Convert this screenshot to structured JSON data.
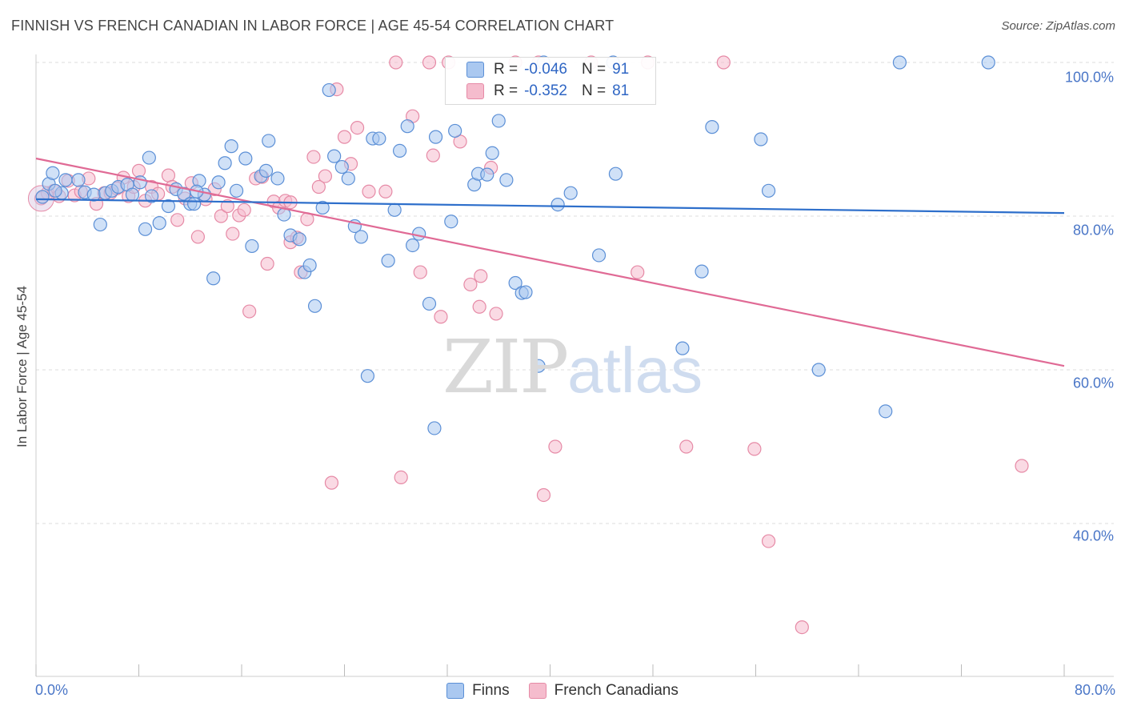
{
  "title": "FINNISH VS FRENCH CANADIAN IN LABOR FORCE | AGE 45-54 CORRELATION CHART",
  "source": "Source: ZipAtlas.com",
  "watermark": {
    "zip": "ZIP",
    "atlas": "atlas"
  },
  "legend": {
    "rows": [
      {
        "r_label": "R =",
        "r_value": "-0.046",
        "n_label": "N =",
        "n_value": "91"
      },
      {
        "r_label": "R =",
        "r_value": "-0.352",
        "n_label": "N =",
        "n_value": "81"
      }
    ]
  },
  "colors": {
    "finns_fill": "#aac8f0",
    "finns_stroke": "#5b8fd6",
    "finns_line": "#2e6fcb",
    "fc_fill": "#f5bccd",
    "fc_stroke": "#e68aa6",
    "fc_line": "#e06a95",
    "grid": "#dddddd",
    "tick_label": "#4a76c7"
  },
  "chart_data": {
    "type": "scatter",
    "title": "FINNISH VS FRENCH CANADIAN IN LABOR FORCE | AGE 45-54 CORRELATION CHART",
    "xlabel": "",
    "ylabel": "In Labor Force | Age 45-54",
    "xlim": [
      0,
      80
    ],
    "ylim": [
      20,
      102
    ],
    "x_ticks": [
      0,
      80
    ],
    "x_tick_labels": [
      "0.0%",
      "80.0%"
    ],
    "y_ticks": [
      40,
      60,
      80,
      100
    ],
    "y_tick_labels": [
      "40.0%",
      "60.0%",
      "80.0%",
      "100.0%"
    ],
    "grid": true,
    "legend_position": "top-center",
    "series": [
      {
        "name": "Finns",
        "R": -0.046,
        "N": 91,
        "trend": [
          [
            0,
            82.2
          ],
          [
            80,
            80.4
          ]
        ],
        "points": [
          [
            0.5,
            82.5
          ],
          [
            1.0,
            84.2
          ],
          [
            1.3,
            85.6
          ],
          [
            2.0,
            83.0
          ],
          [
            2.3,
            84.7
          ],
          [
            3.3,
            84.7
          ],
          [
            3.8,
            83.1
          ],
          [
            4.5,
            82.8
          ],
          [
            5.0,
            78.9
          ],
          [
            5.4,
            83.0
          ],
          [
            5.9,
            83.3
          ],
          [
            6.4,
            83.8
          ],
          [
            7.1,
            84.1
          ],
          [
            7.5,
            82.8
          ],
          [
            8.1,
            84.4
          ],
          [
            8.5,
            78.3
          ],
          [
            8.8,
            87.6
          ],
          [
            9.6,
            79.1
          ],
          [
            10.3,
            81.3
          ],
          [
            10.9,
            83.5
          ],
          [
            11.5,
            82.9
          ],
          [
            12.0,
            81.6
          ],
          [
            12.3,
            81.6
          ],
          [
            12.7,
            84.6
          ],
          [
            13.1,
            82.8
          ],
          [
            13.8,
            71.9
          ],
          [
            14.2,
            84.4
          ],
          [
            14.7,
            86.9
          ],
          [
            15.2,
            89.1
          ],
          [
            15.6,
            83.3
          ],
          [
            16.3,
            87.5
          ],
          [
            16.8,
            76.1
          ],
          [
            17.5,
            85.2
          ],
          [
            17.9,
            85.9
          ],
          [
            18.1,
            89.8
          ],
          [
            18.8,
            84.9
          ],
          [
            19.3,
            80.2
          ],
          [
            19.8,
            77.5
          ],
          [
            20.5,
            77.0
          ],
          [
            20.9,
            72.7
          ],
          [
            21.3,
            73.6
          ],
          [
            21.7,
            68.3
          ],
          [
            22.3,
            81.1
          ],
          [
            22.8,
            96.4
          ],
          [
            23.2,
            87.8
          ],
          [
            23.8,
            86.4
          ],
          [
            24.3,
            84.9
          ],
          [
            24.8,
            78.7
          ],
          [
            25.3,
            77.3
          ],
          [
            25.8,
            59.2
          ],
          [
            26.2,
            90.1
          ],
          [
            26.7,
            90.1
          ],
          [
            27.4,
            74.2
          ],
          [
            27.9,
            80.8
          ],
          [
            28.3,
            88.5
          ],
          [
            28.9,
            91.7
          ],
          [
            29.3,
            76.2
          ],
          [
            29.8,
            77.7
          ],
          [
            30.6,
            68.6
          ],
          [
            31.0,
            52.4
          ],
          [
            31.1,
            90.3
          ],
          [
            32.3,
            79.3
          ],
          [
            32.6,
            91.1
          ],
          [
            34.1,
            84.1
          ],
          [
            34.4,
            85.5
          ],
          [
            35.1,
            85.4
          ],
          [
            35.5,
            88.2
          ],
          [
            36.0,
            92.4
          ],
          [
            36.6,
            84.7
          ],
          [
            37.3,
            71.3
          ],
          [
            37.8,
            70.0
          ],
          [
            38.1,
            70.1
          ],
          [
            39.1,
            60.5
          ],
          [
            39.5,
            100.0
          ],
          [
            40.6,
            81.5
          ],
          [
            41.6,
            83.0
          ],
          [
            43.8,
            74.9
          ],
          [
            44.9,
            100.0
          ],
          [
            45.1,
            85.5
          ],
          [
            50.3,
            62.8
          ],
          [
            51.8,
            72.8
          ],
          [
            52.6,
            91.6
          ],
          [
            56.4,
            90.0
          ],
          [
            57.0,
            83.3
          ],
          [
            60.9,
            60.0
          ],
          [
            67.2,
            100.0
          ],
          [
            66.1,
            54.6
          ],
          [
            74.1,
            100.0
          ],
          [
            1.5,
            83.3
          ],
          [
            9.0,
            82.6
          ],
          [
            12.5,
            83.2
          ]
        ]
      },
      {
        "name": "French Canadians",
        "R": -0.352,
        "N": 81,
        "trend": [
          [
            0,
            87.5
          ],
          [
            80,
            60.5
          ]
        ],
        "points": [
          [
            0.4,
            82.3
          ],
          [
            0.9,
            83.0
          ],
          [
            1.4,
            83.3
          ],
          [
            1.8,
            82.6
          ],
          [
            2.5,
            84.6
          ],
          [
            3.0,
            82.7
          ],
          [
            3.5,
            83.2
          ],
          [
            4.1,
            84.9
          ],
          [
            4.7,
            81.6
          ],
          [
            5.3,
            83.0
          ],
          [
            5.8,
            83.0
          ],
          [
            6.3,
            83.6
          ],
          [
            6.8,
            85.0
          ],
          [
            7.2,
            82.6
          ],
          [
            7.6,
            83.8
          ],
          [
            8.0,
            85.9
          ],
          [
            8.5,
            82.0
          ],
          [
            9.0,
            83.8
          ],
          [
            9.5,
            82.9
          ],
          [
            10.3,
            85.3
          ],
          [
            10.6,
            83.8
          ],
          [
            11.0,
            79.5
          ],
          [
            11.6,
            82.3
          ],
          [
            12.1,
            84.3
          ],
          [
            12.6,
            77.3
          ],
          [
            13.2,
            82.2
          ],
          [
            13.9,
            83.5
          ],
          [
            14.4,
            80.0
          ],
          [
            14.9,
            81.3
          ],
          [
            15.3,
            77.7
          ],
          [
            15.8,
            80.1
          ],
          [
            16.2,
            80.8
          ],
          [
            16.6,
            67.6
          ],
          [
            17.1,
            84.9
          ],
          [
            17.6,
            85.1
          ],
          [
            18.0,
            73.8
          ],
          [
            18.5,
            81.9
          ],
          [
            18.9,
            81.1
          ],
          [
            19.4,
            82.0
          ],
          [
            19.8,
            76.6
          ],
          [
            20.3,
            77.2
          ],
          [
            20.6,
            72.7
          ],
          [
            21.1,
            79.6
          ],
          [
            21.6,
            87.7
          ],
          [
            22.0,
            83.8
          ],
          [
            22.5,
            85.2
          ],
          [
            23.0,
            45.3
          ],
          [
            23.4,
            96.5
          ],
          [
            24.0,
            90.3
          ],
          [
            24.5,
            86.8
          ],
          [
            25.0,
            91.5
          ],
          [
            25.9,
            83.2
          ],
          [
            27.2,
            83.2
          ],
          [
            28.4,
            46.0
          ],
          [
            29.3,
            93.0
          ],
          [
            29.9,
            72.7
          ],
          [
            30.6,
            100.0
          ],
          [
            30.9,
            87.9
          ],
          [
            32.1,
            100.0
          ],
          [
            33.0,
            89.7
          ],
          [
            33.8,
            71.1
          ],
          [
            34.6,
            72.2
          ],
          [
            35.4,
            86.3
          ],
          [
            35.8,
            67.3
          ],
          [
            37.3,
            100.0
          ],
          [
            39.1,
            100.0
          ],
          [
            39.5,
            43.7
          ],
          [
            40.4,
            50.0
          ],
          [
            43.2,
            100.0
          ],
          [
            46.8,
            72.7
          ],
          [
            47.6,
            100.0
          ],
          [
            50.6,
            50.0
          ],
          [
            53.5,
            100.0
          ],
          [
            55.9,
            49.7
          ],
          [
            57.0,
            37.7
          ],
          [
            59.6,
            26.5
          ],
          [
            76.7,
            47.5
          ],
          [
            34.5,
            68.2
          ],
          [
            28.0,
            100.0
          ],
          [
            31.5,
            66.9
          ],
          [
            19.8,
            81.8
          ]
        ]
      }
    ]
  },
  "bottom_legend": [
    {
      "label": "Finns"
    },
    {
      "label": "French Canadians"
    }
  ]
}
